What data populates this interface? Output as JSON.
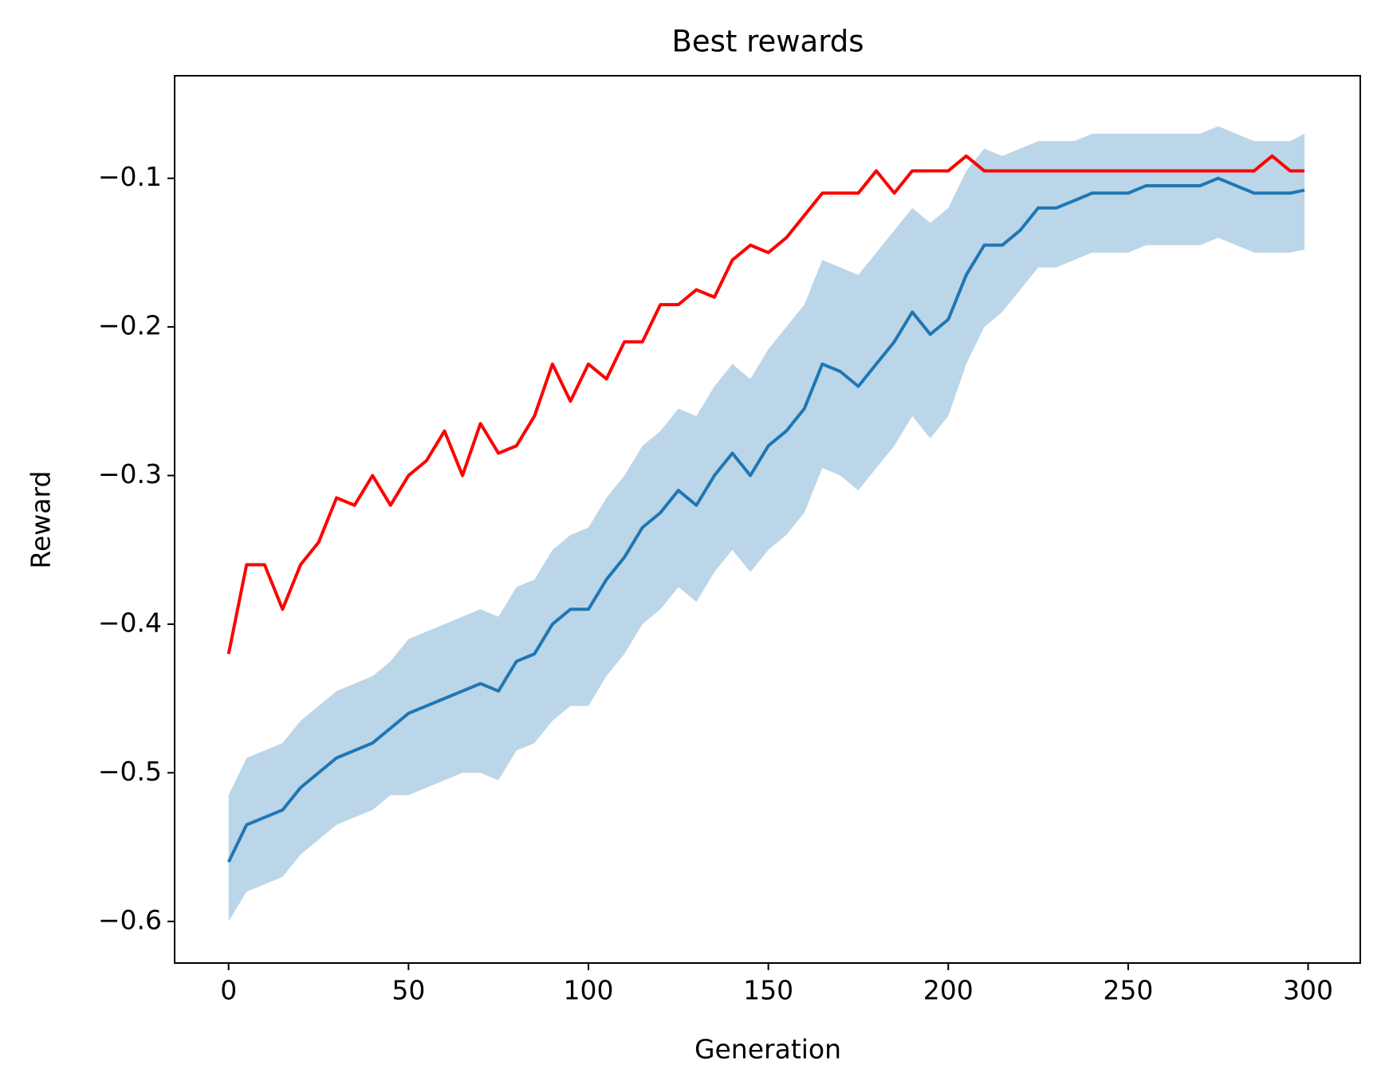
{
  "chart_data": {
    "type": "line",
    "title": "Best rewards",
    "xlabel": "Generation",
    "ylabel": "Reward",
    "x": [
      0,
      5,
      10,
      15,
      20,
      25,
      30,
      35,
      40,
      45,
      50,
      55,
      60,
      65,
      70,
      75,
      80,
      85,
      90,
      95,
      100,
      105,
      110,
      115,
      120,
      125,
      130,
      135,
      140,
      145,
      150,
      155,
      160,
      165,
      170,
      175,
      180,
      185,
      190,
      195,
      200,
      205,
      210,
      215,
      220,
      225,
      230,
      235,
      240,
      245,
      250,
      255,
      260,
      265,
      270,
      275,
      280,
      285,
      290,
      295,
      299
    ],
    "series": [
      {
        "color": "#ff0000",
        "values": [
          -0.42,
          -0.36,
          -0.36,
          -0.39,
          -0.36,
          -0.345,
          -0.315,
          -0.32,
          -0.3,
          -0.32,
          -0.3,
          -0.29,
          -0.27,
          -0.3,
          -0.265,
          -0.285,
          -0.28,
          -0.26,
          -0.225,
          -0.25,
          -0.225,
          -0.235,
          -0.21,
          -0.21,
          -0.185,
          -0.185,
          -0.175,
          -0.18,
          -0.155,
          -0.145,
          -0.15,
          -0.14,
          -0.125,
          -0.11,
          -0.11,
          -0.11,
          -0.095,
          -0.11,
          -0.095,
          -0.095,
          -0.095,
          -0.085,
          -0.095,
          -0.095,
          -0.095,
          -0.095,
          -0.095,
          -0.095,
          -0.095,
          -0.095,
          -0.095,
          -0.095,
          -0.095,
          -0.095,
          -0.095,
          -0.095,
          -0.095,
          -0.095,
          -0.085,
          -0.095,
          -0.095
        ]
      },
      {
        "color": "#1f77b4",
        "values": [
          -0.56,
          -0.535,
          -0.53,
          -0.525,
          -0.51,
          -0.5,
          -0.49,
          -0.485,
          -0.48,
          -0.47,
          -0.46,
          -0.455,
          -0.45,
          -0.445,
          -0.44,
          -0.445,
          -0.425,
          -0.42,
          -0.4,
          -0.39,
          -0.39,
          -0.37,
          -0.355,
          -0.335,
          -0.325,
          -0.31,
          -0.32,
          -0.3,
          -0.285,
          -0.3,
          -0.28,
          -0.27,
          -0.255,
          -0.225,
          -0.23,
          -0.24,
          -0.225,
          -0.21,
          -0.19,
          -0.205,
          -0.195,
          -0.165,
          -0.145,
          -0.145,
          -0.135,
          -0.12,
          -0.12,
          -0.115,
          -0.11,
          -0.11,
          -0.11,
          -0.105,
          -0.105,
          -0.105,
          -0.105,
          -0.1,
          -0.105,
          -0.11,
          -0.11,
          -0.11,
          -0.108
        ]
      }
    ],
    "band": {
      "color": "#1f77b4",
      "opacity": 0.3,
      "upper": [
        -0.515,
        -0.49,
        -0.485,
        -0.48,
        -0.465,
        -0.455,
        -0.445,
        -0.44,
        -0.435,
        -0.425,
        -0.41,
        -0.405,
        -0.4,
        -0.395,
        -0.39,
        -0.395,
        -0.375,
        -0.37,
        -0.35,
        -0.34,
        -0.335,
        -0.315,
        -0.3,
        -0.28,
        -0.27,
        -0.255,
        -0.26,
        -0.24,
        -0.225,
        -0.235,
        -0.215,
        -0.2,
        -0.185,
        -0.155,
        -0.16,
        -0.165,
        -0.15,
        -0.135,
        -0.12,
        -0.13,
        -0.12,
        -0.095,
        -0.08,
        -0.085,
        -0.08,
        -0.075,
        -0.075,
        -0.075,
        -0.07,
        -0.07,
        -0.07,
        -0.07,
        -0.07,
        -0.07,
        -0.07,
        -0.065,
        -0.07,
        -0.075,
        -0.075,
        -0.075,
        -0.07
      ],
      "lower": [
        -0.6,
        -0.58,
        -0.575,
        -0.57,
        -0.555,
        -0.545,
        -0.535,
        -0.53,
        -0.525,
        -0.515,
        -0.515,
        -0.51,
        -0.505,
        -0.5,
        -0.5,
        -0.505,
        -0.485,
        -0.48,
        -0.465,
        -0.455,
        -0.455,
        -0.435,
        -0.42,
        -0.4,
        -0.39,
        -0.375,
        -0.385,
        -0.365,
        -0.35,
        -0.365,
        -0.35,
        -0.34,
        -0.325,
        -0.295,
        -0.3,
        -0.31,
        -0.295,
        -0.28,
        -0.26,
        -0.275,
        -0.26,
        -0.225,
        -0.2,
        -0.19,
        -0.175,
        -0.16,
        -0.16,
        -0.155,
        -0.15,
        -0.15,
        -0.15,
        -0.145,
        -0.145,
        -0.145,
        -0.145,
        -0.14,
        -0.145,
        -0.15,
        -0.15,
        -0.15,
        -0.148
      ]
    },
    "xlim": [
      -15,
      314.5
    ],
    "ylim": [
      -0.628,
      -0.031
    ],
    "xticks": [
      0,
      50,
      100,
      150,
      200,
      250,
      300
    ],
    "yticks": [
      {
        "value": -0.1,
        "label": "−0.1"
      },
      {
        "value": -0.2,
        "label": "−0.2"
      },
      {
        "value": -0.3,
        "label": "−0.3"
      },
      {
        "value": -0.4,
        "label": "−0.4"
      },
      {
        "value": -0.5,
        "label": "−0.5"
      },
      {
        "value": -0.6,
        "label": "−0.6"
      }
    ],
    "grid": false
  }
}
